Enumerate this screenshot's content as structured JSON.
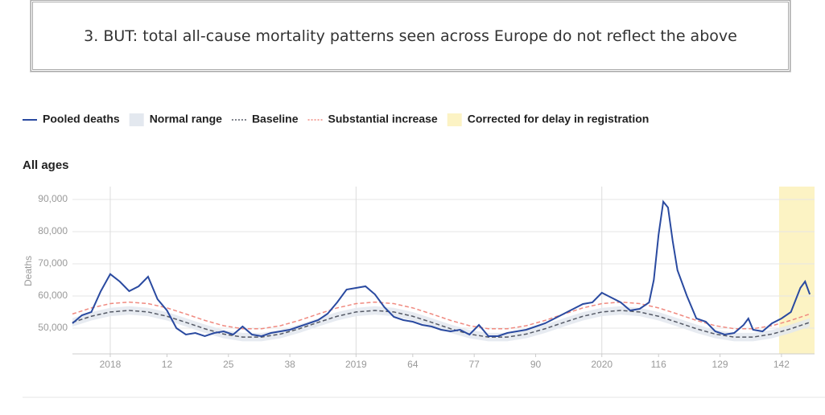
{
  "banner": "3. BUT: total all-cause mortality patterns seen across Europe do not reflect the above",
  "chart_data": {
    "type": "line",
    "title": "All ages",
    "y_label": "Deaths",
    "xlim": [
      -8,
      149
    ],
    "ylim": [
      42000,
      94000
    ],
    "xticks": [
      {
        "value": 0,
        "label": "2018"
      },
      12,
      25,
      38,
      {
        "value": 52,
        "label": "2019"
      },
      64,
      77,
      90,
      {
        "value": 104,
        "label": "2020"
      },
      116,
      129,
      142
    ],
    "yticks": [
      {
        "value": 50000,
        "label": "50,000"
      },
      {
        "value": 60000,
        "label": "60,000"
      },
      {
        "value": 70000,
        "label": "70,000"
      },
      {
        "value": 80000,
        "label": "80,000"
      },
      {
        "value": 90000,
        "label": "90,000"
      }
    ],
    "grid": true,
    "series": [
      {
        "name": "Pooled deaths",
        "color": "#2a4aa0",
        "x": [
          -8,
          -6,
          -4,
          -2,
          0,
          2,
          4,
          6,
          8,
          10,
          12,
          14,
          16,
          18,
          20,
          22,
          24,
          26,
          28,
          30,
          32,
          34,
          36,
          38,
          40,
          42,
          44,
          46,
          48,
          50,
          52,
          54,
          56,
          58,
          60,
          62,
          64,
          66,
          68,
          70,
          72,
          74,
          76,
          78,
          80,
          82,
          84,
          86,
          88,
          90,
          92,
          94,
          96,
          98,
          100,
          102,
          104,
          106,
          108,
          110,
          112,
          114,
          115,
          116,
          117,
          118,
          119,
          120,
          122,
          124,
          126,
          128,
          130,
          132,
          134,
          135,
          136,
          138,
          140,
          142,
          144,
          146,
          147,
          148
        ],
        "values": [
          51500,
          54000,
          55000,
          61500,
          66800,
          64500,
          61500,
          63000,
          66000,
          59000,
          55500,
          50000,
          48000,
          48500,
          47500,
          48500,
          49000,
          48000,
          50500,
          48000,
          47500,
          48500,
          49000,
          49500,
          50500,
          51500,
          52500,
          54500,
          58000,
          62000,
          62500,
          63000,
          60500,
          56500,
          53500,
          52500,
          52000,
          51000,
          50500,
          49500,
          49000,
          49500,
          48000,
          51000,
          47500,
          47500,
          48500,
          49000,
          49500,
          50500,
          51500,
          53000,
          54500,
          56000,
          57500,
          58000,
          61000,
          59500,
          58000,
          55500,
          56000,
          58000,
          65000,
          79000,
          89300,
          87500,
          77000,
          68000,
          60000,
          53000,
          52000,
          49000,
          48000,
          48500,
          51000,
          53000,
          49500,
          49000,
          51500,
          53000,
          55000,
          62500,
          64500,
          60500
        ]
      },
      {
        "name": "Baseline",
        "color": "#555a66",
        "x": [
          -8,
          -4,
          0,
          4,
          8,
          12,
          16,
          20,
          24,
          28,
          32,
          36,
          40,
          44,
          48,
          52,
          56,
          60,
          64,
          68,
          72,
          76,
          80,
          84,
          88,
          92,
          96,
          100,
          104,
          108,
          112,
          116,
          120,
          124,
          128,
          132,
          136,
          140,
          144,
          148
        ],
        "values": [
          51800,
          53690,
          55020,
          55500,
          55020,
          53690,
          51800,
          49810,
          48150,
          47220,
          47220,
          48150,
          49810,
          51800,
          53690,
          55020,
          55500,
          55020,
          53690,
          51800,
          49810,
          48150,
          47220,
          47220,
          48150,
          49810,
          51800,
          53690,
          55020,
          55500,
          55020,
          53690,
          51800,
          49810,
          48150,
          47220,
          47220,
          48150,
          49810,
          51800
        ]
      },
      {
        "name": "Substantial increase",
        "color": "#f08a80",
        "x": [
          -8,
          -4,
          0,
          4,
          8,
          12,
          16,
          20,
          24,
          28,
          32,
          36,
          40,
          44,
          48,
          52,
          56,
          60,
          64,
          68,
          72,
          76,
          80,
          84,
          88,
          92,
          96,
          100,
          104,
          108,
          112,
          116,
          120,
          124,
          128,
          132,
          136,
          140,
          144,
          148
        ],
        "values": [
          54400,
          56290,
          57620,
          58100,
          57620,
          56290,
          54400,
          52410,
          50750,
          49820,
          49820,
          50750,
          52410,
          54400,
          56290,
          57620,
          58100,
          57620,
          56290,
          54400,
          52410,
          50750,
          49820,
          49820,
          50750,
          52410,
          54400,
          56290,
          57620,
          58100,
          57620,
          56290,
          54400,
          52410,
          50750,
          49820,
          49820,
          50750,
          52410,
          54400
        ]
      }
    ],
    "normal_range": {
      "name": "Normal range",
      "color": "#e3e8ef",
      "x": [
        -8,
        -4,
        0,
        4,
        8,
        12,
        16,
        20,
        24,
        28,
        32,
        36,
        40,
        44,
        48,
        52,
        56,
        60,
        64,
        68,
        72,
        76,
        80,
        84,
        88,
        92,
        96,
        100,
        104,
        108,
        112,
        116,
        120,
        124,
        128,
        132,
        136,
        140,
        144,
        148
      ],
      "upper": [
        53100,
        54990,
        56320,
        56800,
        56320,
        54990,
        53100,
        51110,
        49450,
        48520,
        48520,
        49450,
        51110,
        53100,
        54990,
        56320,
        56800,
        56320,
        54990,
        53100,
        51110,
        49450,
        48520,
        48520,
        49450,
        51110,
        53100,
        54990,
        56320,
        56800,
        56320,
        54990,
        53100,
        51110,
        49450,
        48520,
        48520,
        49450,
        51110,
        53100
      ],
      "lower": [
        50500,
        52390,
        53720,
        54200,
        53720,
        52390,
        50500,
        48510,
        46850,
        45920,
        45920,
        46850,
        48510,
        50500,
        52390,
        53720,
        54200,
        53720,
        52390,
        50500,
        48510,
        46850,
        45920,
        45920,
        46850,
        48510,
        50500,
        52390,
        53720,
        54200,
        53720,
        52390,
        50500,
        48510,
        46850,
        45920,
        45920,
        46850,
        48510,
        50500
      ]
    },
    "corrected": {
      "name": "Corrected for delay in registration",
      "color": "#fcf3c4",
      "range": [
        141.5,
        149
      ]
    }
  }
}
